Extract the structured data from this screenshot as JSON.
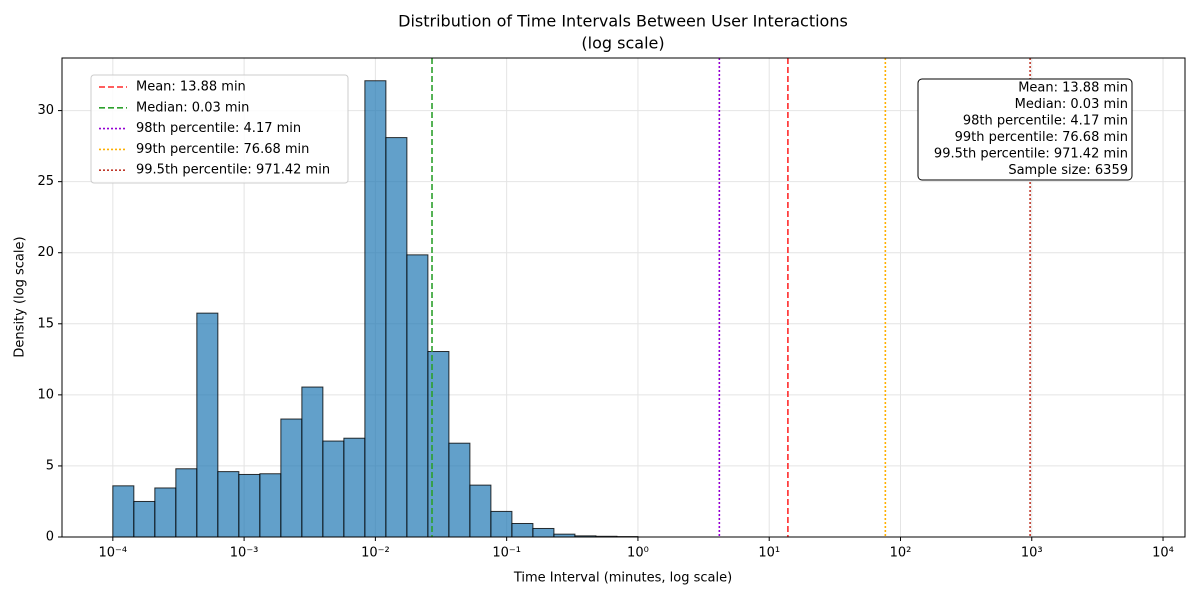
{
  "chart_data": {
    "type": "histogram",
    "title": "Distribution of Time Intervals Between User Interactions",
    "subtitle": "(log scale)",
    "x_label": "Time Interval (minutes, log scale)",
    "y_label": "Density (log scale)",
    "x_log": true,
    "grid": true,
    "color": "#1f77b4",
    "bins": [
      0.0001,
      0.00014454,
      0.00020893,
      0.000302,
      0.00043652,
      0.00063096,
      0.00091201,
      0.0013183,
      0.0019055,
      0.0027542,
      0.0039811,
      0.0057544,
      0.0083176,
      0.012023,
      0.017378,
      0.025119,
      0.036308,
      0.052481,
      0.075858,
      0.10965,
      0.15849,
      0.22909,
      0.33113,
      0.47863,
      0.69183,
      1
    ],
    "values": [
      3.6,
      2.5,
      3.45,
      4.8,
      15.75,
      4.6,
      4.4,
      4.45,
      8.3,
      10.55,
      6.75,
      6.95,
      32.1,
      28.1,
      19.85,
      13.05,
      6.6,
      3.65,
      1.8,
      0.95,
      0.6,
      0.2,
      0.08,
      0.05,
      0.03
    ],
    "xlim": [
      4.1e-05,
      14700
    ],
    "ylim": [
      0,
      33.7
    ],
    "xticks": [
      {
        "value": 0.0001,
        "label": "10⁻⁴"
      },
      {
        "value": 0.001,
        "label": "10⁻³"
      },
      {
        "value": 0.01,
        "label": "10⁻²"
      },
      {
        "value": 0.1,
        "label": "10⁻¹"
      },
      {
        "value": 1,
        "label": "10⁰"
      },
      {
        "value": 10,
        "label": "10¹"
      },
      {
        "value": 100,
        "label": "10²"
      },
      {
        "value": 1000,
        "label": "10³"
      },
      {
        "value": 10000,
        "label": "10⁴"
      }
    ],
    "yticks": [
      0,
      5,
      10,
      15,
      20,
      25,
      30
    ],
    "legend_position": "upper left",
    "reference_lines": [
      {
        "name": "Mean: 13.88 min",
        "value": 13.88,
        "color": "#ff2a2a",
        "style": "dashed"
      },
      {
        "name": "Median: 0.03 min",
        "value": 0.027,
        "color": "#2ca02c",
        "style": "dashed"
      },
      {
        "name": "98th percentile: 4.17 min",
        "value": 4.17,
        "color": "#9400d3",
        "style": "dotted"
      },
      {
        "name": "99th percentile: 76.68 min",
        "value": 76.68,
        "color": "#ffb000",
        "style": "dotted"
      },
      {
        "name": "99.5th percentile: 971.42 min",
        "value": 971.42,
        "color": "#c0392b",
        "style": "dotted"
      }
    ],
    "sample_size_label": "Sample size: 6359"
  }
}
